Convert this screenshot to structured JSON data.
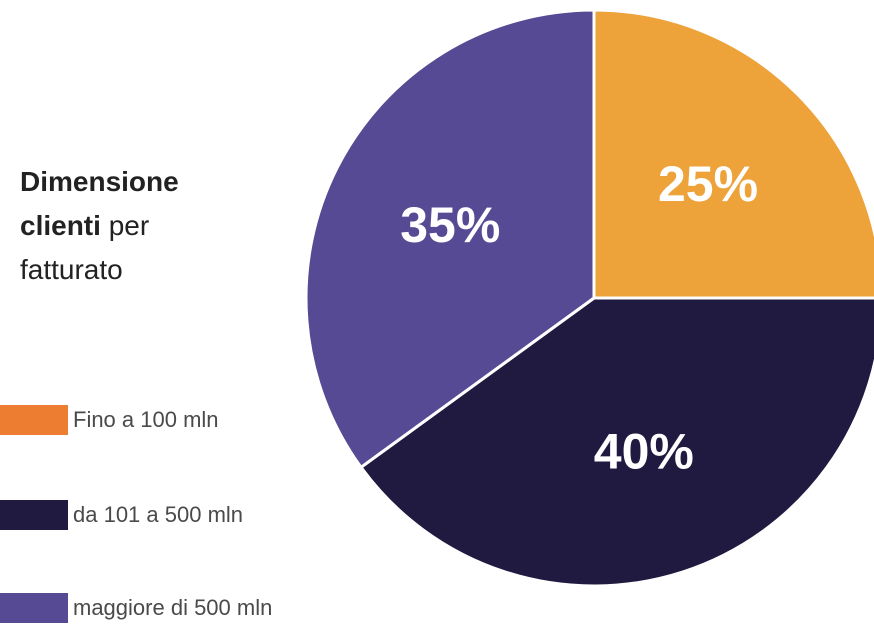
{
  "chart_data": {
    "type": "pie",
    "title": {
      "bold_part": "Dimensione clienti",
      "regular_part": " per fatturato"
    },
    "slices": [
      {
        "label": "Fino a 100 mln",
        "value": 25,
        "value_label": "25%",
        "color": "#EDA23A",
        "legend_color": "#ED7D31"
      },
      {
        "label": "da 101 a 500 mln",
        "value": 40,
        "value_label": "40%",
        "color": "#201A40",
        "legend_color": "#201A40"
      },
      {
        "label": "maggiore di 500 mln",
        "value": 35,
        "value_label": "35%",
        "color": "#574A94",
        "legend_color": "#574A94"
      }
    ],
    "legend_position": "left",
    "start_angle": "top, clockwise"
  }
}
